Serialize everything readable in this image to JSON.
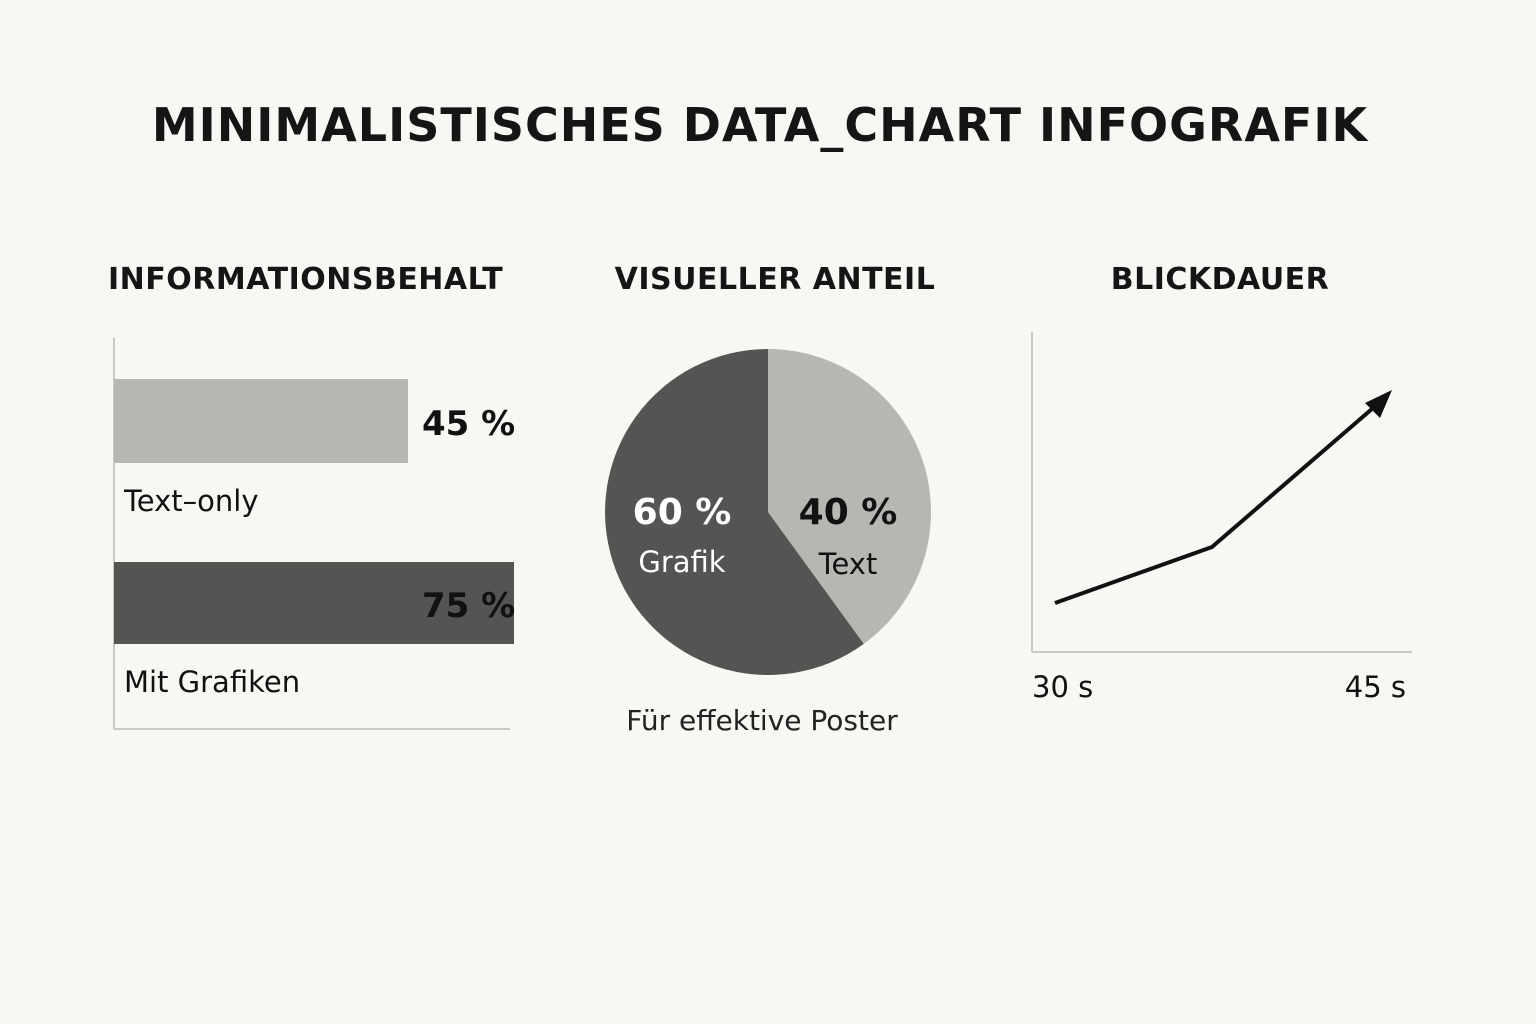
{
  "title": "MINIMALISTISCHES DATA_CHART INFOGRAFIK",
  "colors": {
    "background": "#f8f7f3",
    "light_gray": "#b7b6b2",
    "dark_gray": "#545452",
    "axis": "#c8c8c5",
    "ink": "#111111"
  },
  "chart_data": [
    {
      "type": "bar",
      "orientation": "horizontal",
      "title": "INFORMATIONSBEHALT",
      "categories": [
        "Text–only",
        "Mit Grafiken"
      ],
      "values": [
        45,
        75
      ],
      "value_labels": [
        "45 %",
        "75 %"
      ],
      "colors": [
        "#b7b6b2",
        "#545452"
      ]
    },
    {
      "type": "pie",
      "title": "VISUELLER ANTEIL",
      "slices": [
        {
          "label": "Grafik",
          "value": 60,
          "value_label": "60 %",
          "color": "#545452"
        },
        {
          "label": "Text",
          "value": 40,
          "value_label": "40 %",
          "color": "#b7b6b2"
        }
      ],
      "caption": "Für effektive Poster"
    },
    {
      "type": "line",
      "title": "BLICKDAUER",
      "x_tick_labels": [
        "30 s",
        "45 s"
      ],
      "grid": false,
      "trend": "increasing",
      "arrow_end": true
    }
  ]
}
